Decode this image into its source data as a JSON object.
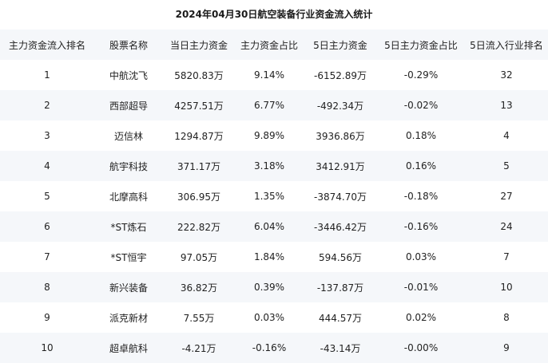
{
  "title": "2024年04月30日航空装备行业资金流入统计",
  "columns": [
    "主力资金流入排名",
    "股票名称",
    "当日主力资金",
    "主力资金占比",
    "5日主力资金",
    "5日主力资金占比",
    "5日流入行业排名"
  ],
  "rows": [
    [
      "1",
      "中航沈飞",
      "5820.83万",
      "9.14%",
      "-6152.89万",
      "-0.29%",
      "32"
    ],
    [
      "2",
      "西部超导",
      "4257.51万",
      "6.77%",
      "-492.34万",
      "-0.02%",
      "13"
    ],
    [
      "3",
      "迈信林",
      "1294.87万",
      "9.89%",
      "3936.86万",
      "0.18%",
      "4"
    ],
    [
      "4",
      "航宇科技",
      "371.17万",
      "3.18%",
      "3412.91万",
      "0.16%",
      "5"
    ],
    [
      "5",
      "北摩高科",
      "306.95万",
      "1.35%",
      "-3874.70万",
      "-0.18%",
      "27"
    ],
    [
      "6",
      "*ST炼石",
      "222.82万",
      "6.04%",
      "-3446.42万",
      "-0.16%",
      "24"
    ],
    [
      "7",
      "*ST恒宇",
      "97.05万",
      "1.84%",
      "594.56万",
      "0.03%",
      "7"
    ],
    [
      "8",
      "新兴装备",
      "36.82万",
      "0.39%",
      "-137.87万",
      "-0.01%",
      "10"
    ],
    [
      "9",
      "派克新材",
      "7.55万",
      "0.03%",
      "444.57万",
      "0.02%",
      "8"
    ],
    [
      "10",
      "超卓航科",
      "-4.21万",
      "-0.16%",
      "-43.14万",
      "-0.00%",
      "9"
    ]
  ]
}
